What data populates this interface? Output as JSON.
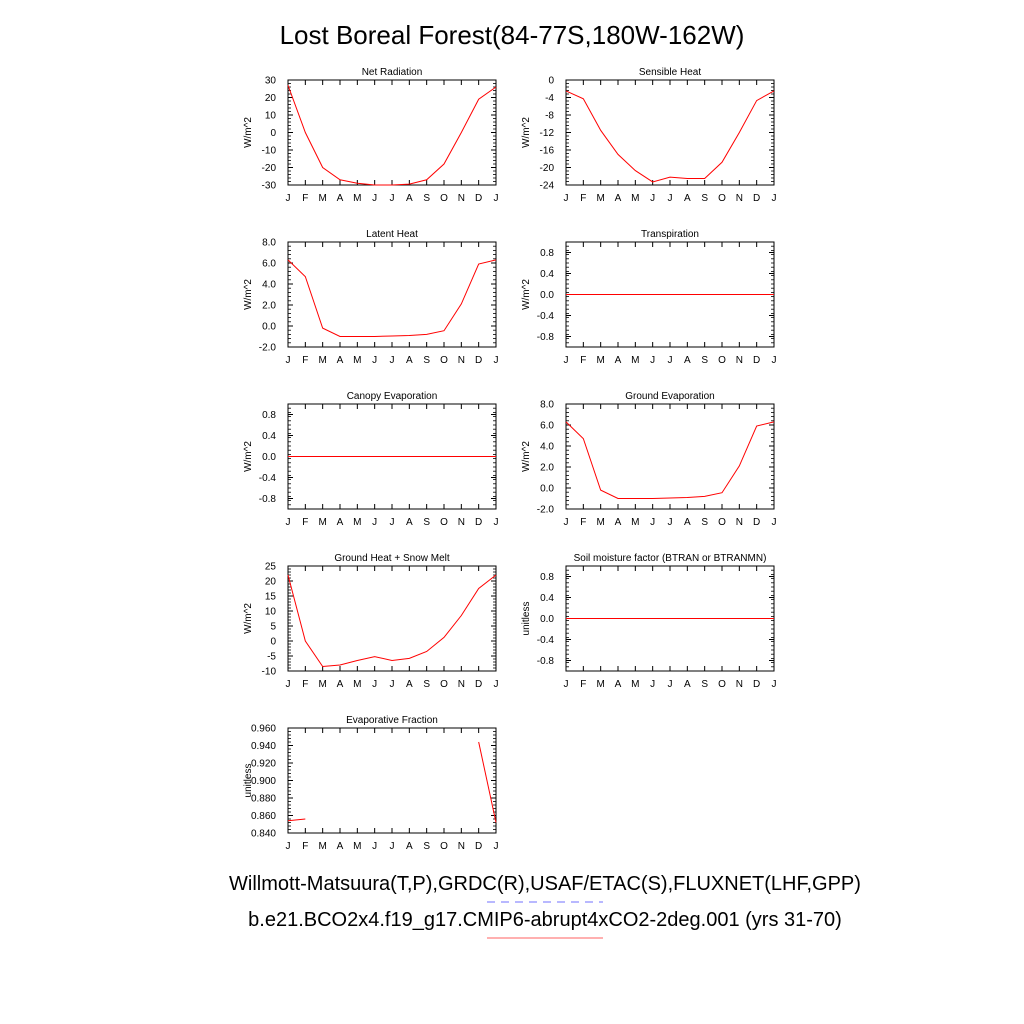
{
  "figure": {
    "title": "Lost Boreal Forest(84-77S,180W-162W)",
    "legend": [
      {
        "text": "Willmott-Matsuura(T,P),GRDC(R),USAF/ETAC(S),FLUXNET(LHF,GPP)",
        "color": "#7070ff",
        "style": "dashed"
      },
      {
        "text": "b.e21.BCO2x4.f19_g17.CMIP6-abrupt4xCO2-2deg.001 (yrs 31-70)",
        "color": "#ff6060",
        "style": "solid"
      }
    ],
    "line_color": "#ff0000"
  },
  "chart_data": [
    {
      "type": "line",
      "title": "Net Radiation",
      "ylabel": "W/m^2",
      "x": [
        "J",
        "F",
        "M",
        "A",
        "M",
        "J",
        "J",
        "A",
        "S",
        "O",
        "N",
        "D",
        "J"
      ],
      "ylim": [
        -30,
        30
      ],
      "yticks": [
        -30,
        -20,
        -10,
        0,
        10,
        20,
        30
      ],
      "ytick_labels": [
        "-30",
        "-20",
        "-10",
        "0",
        "10",
        "20",
        "30"
      ],
      "series": [
        {
          "values": [
            27,
            0,
            -20,
            -27,
            -29,
            -30,
            -30,
            -29.5,
            -27,
            -18,
            0,
            19,
            26
          ]
        }
      ]
    },
    {
      "type": "line",
      "title": "Sensible Heat",
      "ylabel": "W/m^2",
      "x": [
        "J",
        "F",
        "M",
        "A",
        "M",
        "J",
        "J",
        "A",
        "S",
        "O",
        "N",
        "D",
        "J"
      ],
      "ylim": [
        -24,
        0
      ],
      "yticks": [
        -24,
        -20,
        -16,
        -12,
        -8,
        -4,
        0
      ],
      "ytick_labels": [
        "-24",
        "-20",
        "-16",
        "-12",
        "-8",
        "-4",
        "0"
      ],
      "series": [
        {
          "values": [
            -2.5,
            -4.3,
            -11.5,
            -17,
            -20.7,
            -23.3,
            -22.2,
            -22.5,
            -22.5,
            -18.8,
            -12,
            -4.7,
            -2.5
          ]
        }
      ]
    },
    {
      "type": "line",
      "title": "Latent Heat",
      "ylabel": "W/m^2",
      "x": [
        "J",
        "F",
        "M",
        "A",
        "M",
        "J",
        "J",
        "A",
        "S",
        "O",
        "N",
        "D",
        "J"
      ],
      "ylim": [
        -2,
        8
      ],
      "yticks": [
        -2,
        0,
        2,
        4,
        6,
        8
      ],
      "ytick_labels": [
        "-2.0",
        "0.0",
        "2.0",
        "4.0",
        "6.0",
        "8.0"
      ],
      "series": [
        {
          "values": [
            6.3,
            4.7,
            -0.2,
            -1.0,
            -1.0,
            -1.0,
            -0.95,
            -0.9,
            -0.8,
            -0.45,
            2.1,
            5.9,
            6.3
          ]
        }
      ]
    },
    {
      "type": "line",
      "title": "Transpiration",
      "ylabel": "W/m^2",
      "x": [
        "J",
        "F",
        "M",
        "A",
        "M",
        "J",
        "J",
        "A",
        "S",
        "O",
        "N",
        "D",
        "J"
      ],
      "ylim": [
        -1,
        1
      ],
      "yticks": [
        -0.8,
        -0.4,
        0,
        0.4,
        0.8
      ],
      "ytick_labels": [
        "-0.8",
        "-0.4",
        "0.0",
        "0.4",
        "0.8"
      ],
      "series": [
        {
          "values": [
            0,
            0,
            0,
            0,
            0,
            0,
            0,
            0,
            0,
            0,
            0,
            0,
            0
          ]
        }
      ]
    },
    {
      "type": "line",
      "title": "Canopy Evaporation",
      "ylabel": "W/m^2",
      "x": [
        "J",
        "F",
        "M",
        "A",
        "M",
        "J",
        "J",
        "A",
        "S",
        "O",
        "N",
        "D",
        "J"
      ],
      "ylim": [
        -1,
        1
      ],
      "yticks": [
        -0.8,
        -0.4,
        0,
        0.4,
        0.8
      ],
      "ytick_labels": [
        "-0.8",
        "-0.4",
        "0.0",
        "0.4",
        "0.8"
      ],
      "series": [
        {
          "values": [
            0,
            0,
            0,
            0,
            0,
            0,
            0,
            0,
            0,
            0,
            0,
            0,
            0
          ]
        }
      ]
    },
    {
      "type": "line",
      "title": "Ground Evaporation",
      "ylabel": "W/m^2",
      "x": [
        "J",
        "F",
        "M",
        "A",
        "M",
        "J",
        "J",
        "A",
        "S",
        "O",
        "N",
        "D",
        "J"
      ],
      "ylim": [
        -2,
        8
      ],
      "yticks": [
        -2,
        0,
        2,
        4,
        6,
        8
      ],
      "ytick_labels": [
        "-2.0",
        "0.0",
        "2.0",
        "4.0",
        "6.0",
        "8.0"
      ],
      "series": [
        {
          "values": [
            6.3,
            4.7,
            -0.2,
            -1.0,
            -1.0,
            -1.0,
            -0.95,
            -0.9,
            -0.8,
            -0.45,
            2.1,
            5.9,
            6.3
          ]
        }
      ]
    },
    {
      "type": "line",
      "title": "Ground Heat + Snow Melt",
      "ylabel": "W/m^2",
      "x": [
        "J",
        "F",
        "M",
        "A",
        "M",
        "J",
        "J",
        "A",
        "S",
        "O",
        "N",
        "D",
        "J"
      ],
      "ylim": [
        -10,
        25
      ],
      "yticks": [
        -10,
        -5,
        0,
        5,
        10,
        15,
        20,
        25
      ],
      "ytick_labels": [
        "-10",
        "-5",
        "0",
        "5",
        "10",
        "15",
        "20",
        "25"
      ],
      "series": [
        {
          "values": [
            22,
            0,
            -8.5,
            -8,
            -6.5,
            -5.2,
            -6.5,
            -5.8,
            -3.5,
            1.2,
            8.5,
            17.5,
            22
          ]
        }
      ]
    },
    {
      "type": "line",
      "title": "Soil moisture factor (BTRAN or BTRANMN)",
      "ylabel": "unitless",
      "x": [
        "J",
        "F",
        "M",
        "A",
        "M",
        "J",
        "J",
        "A",
        "S",
        "O",
        "N",
        "D",
        "J"
      ],
      "ylim": [
        -1,
        1
      ],
      "yticks": [
        -0.8,
        -0.4,
        0,
        0.4,
        0.8
      ],
      "ytick_labels": [
        "-0.8",
        "-0.4",
        "0.0",
        "0.4",
        "0.8"
      ],
      "series": [
        {
          "values": [
            0,
            0,
            0,
            0,
            0,
            0,
            0,
            0,
            0,
            0,
            0,
            0,
            0
          ]
        }
      ]
    },
    {
      "type": "line",
      "title": "Evaporative Fraction",
      "ylabel": "unitless",
      "x": [
        "J",
        "F",
        "M",
        "A",
        "M",
        "J",
        "J",
        "A",
        "S",
        "O",
        "N",
        "D",
        "J"
      ],
      "ylim": [
        0.84,
        0.96
      ],
      "yticks": [
        0.84,
        0.86,
        0.88,
        0.9,
        0.92,
        0.94,
        0.96
      ],
      "ytick_labels": [
        "0.840",
        "0.860",
        "0.880",
        "0.900",
        "0.920",
        "0.940",
        "0.960"
      ],
      "series": [
        {
          "values": [
            0.854,
            0.856,
            null,
            null,
            null,
            null,
            null,
            null,
            null,
            null,
            null,
            0.944,
            0.852
          ]
        }
      ]
    }
  ]
}
